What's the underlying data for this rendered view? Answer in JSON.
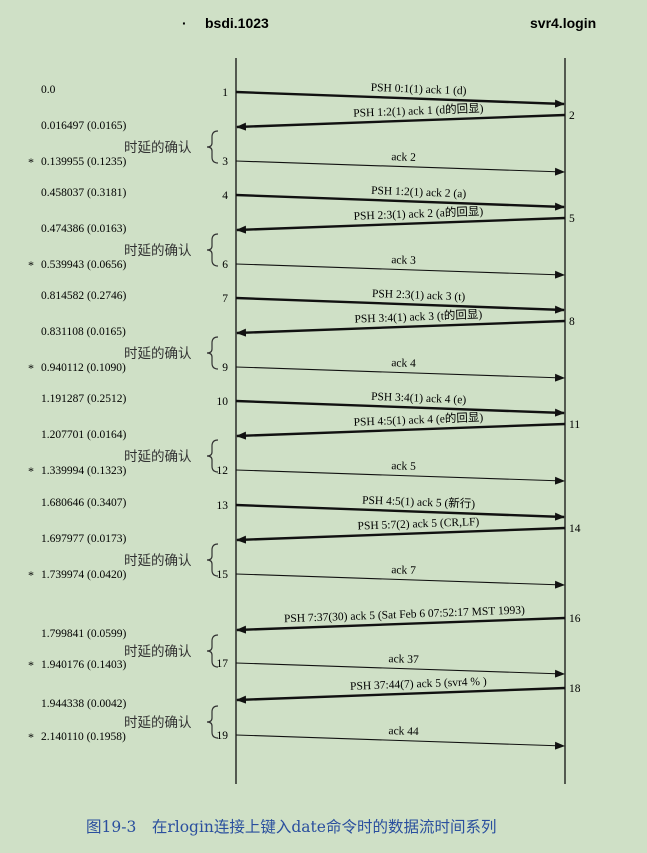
{
  "hosts": {
    "left": "bsdi.1023",
    "right": "svr4.login"
  },
  "segments": [
    {
      "n": "1",
      "dir": "r",
      "label": "PSH 0:1(1) ack 1 (d)"
    },
    {
      "n": "2",
      "dir": "l",
      "label": "PSH 1:2(1) ack 1 (d的回显)"
    },
    {
      "n": "3",
      "dir": "r",
      "label": "ack 2"
    },
    {
      "n": "4",
      "dir": "r",
      "label": "PSH 1:2(1) ack 2 (a)"
    },
    {
      "n": "5",
      "dir": "l",
      "label": "PSH 2:3(1) ack 2 (a的回显)"
    },
    {
      "n": "6",
      "dir": "r",
      "label": "ack 3"
    },
    {
      "n": "7",
      "dir": "r",
      "label": "PSH 2:3(1) ack 3 (t)"
    },
    {
      "n": "8",
      "dir": "l",
      "label": "PSH 3:4(1) ack 3 (t的回显)"
    },
    {
      "n": "9",
      "dir": "r",
      "label": "ack 4"
    },
    {
      "n": "10",
      "dir": "r",
      "label": "PSH 3:4(1) ack 4 (e)"
    },
    {
      "n": "11",
      "dir": "l",
      "label": "PSH 4:5(1) ack 4 (e的回显)"
    },
    {
      "n": "12",
      "dir": "r",
      "label": "ack 5"
    },
    {
      "n": "13",
      "dir": "r",
      "label": "PSH 4:5(1) ack 5 (新行)"
    },
    {
      "n": "14",
      "dir": "l",
      "label": "PSH 5:7(2) ack 5 (CR,LF)"
    },
    {
      "n": "15",
      "dir": "r",
      "label": "ack 7"
    },
    {
      "n": "16",
      "dir": "l",
      "label": "PSH 7:37(30) ack 5 (Sat Feb  6 07:52:17 MST 1993)"
    },
    {
      "n": "17",
      "dir": "r",
      "label": "ack 37"
    },
    {
      "n": "18",
      "dir": "l",
      "label": "PSH 37:44(7) ack 5 (svr4 % )"
    },
    {
      "n": "19",
      "dir": "r",
      "label": "ack 44"
    }
  ],
  "timestamps": [
    {
      "text": "0.0",
      "star": false
    },
    {
      "text": "0.016497 (0.0165)",
      "star": false
    },
    {
      "text": "0.139955 (0.1235)",
      "star": true
    },
    {
      "text": "0.458037 (0.3181)",
      "star": false
    },
    {
      "text": "0.474386 (0.0163)",
      "star": false
    },
    {
      "text": "0.539943 (0.0656)",
      "star": true
    },
    {
      "text": "0.814582 (0.2746)",
      "star": false
    },
    {
      "text": "0.831108 (0.0165)",
      "star": false
    },
    {
      "text": "0.940112 (0.1090)",
      "star": true
    },
    {
      "text": "1.191287 (0.2512)",
      "star": false
    },
    {
      "text": "1.207701 (0.0164)",
      "star": false
    },
    {
      "text": "1.339994 (0.1323)",
      "star": true
    },
    {
      "text": "1.680646 (0.3407)",
      "star": false
    },
    {
      "text": "1.697977 (0.0173)",
      "star": false
    },
    {
      "text": "1.739974 (0.0420)",
      "star": true
    },
    {
      "text": "1.799841 (0.0599)",
      "star": false
    },
    {
      "text": "1.940176 (0.1403)",
      "star": true
    },
    {
      "text": "1.944338 (0.0042)",
      "star": false
    },
    {
      "text": "2.140110 (0.1958)",
      "star": true
    }
  ],
  "star_symbol": "*",
  "delayed_ack_label": "时延的确认",
  "caption": "图19-3　在rlogin连接上键入date命令时的数据流时间系列"
}
